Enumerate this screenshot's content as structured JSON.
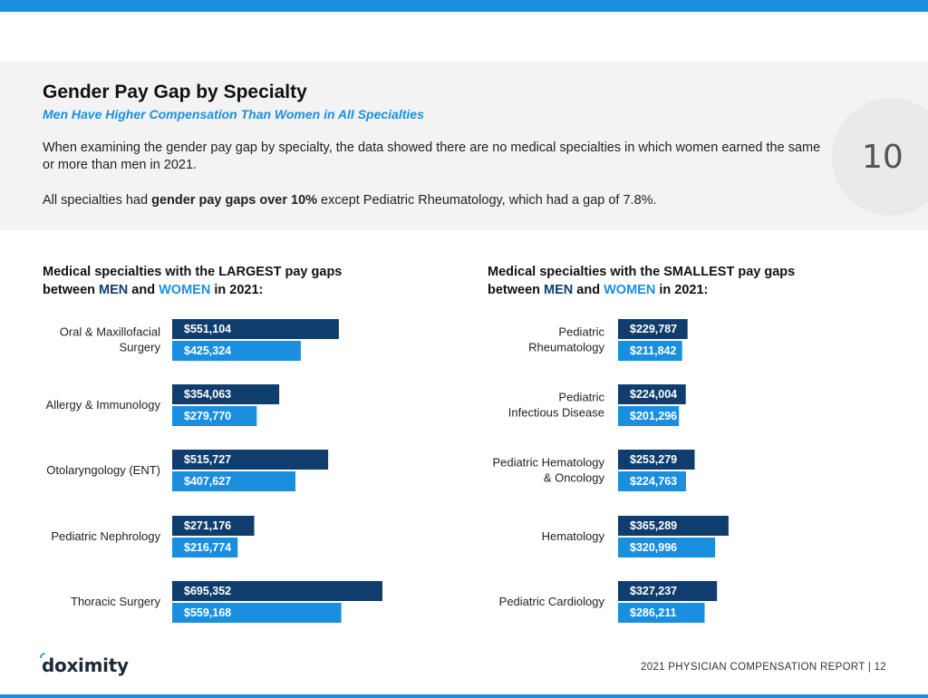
{
  "header": {
    "title": "Gender Pay Gap by Specialty",
    "subtitle": "Men Have Higher Compensation Than Women in All Specialties",
    "para1": "When examining the gender pay gap by specialty, the data showed there are no medical specialties in which women earned the same or more than men in 2021.",
    "para2_pre": "All specialties had ",
    "para2_bold": "gender pay gaps over 10%",
    "para2_post": " except Pediatric Rheumatology, which had a gap of 7.8%.",
    "page_badge": "10"
  },
  "left_panel": {
    "title_line1": "Medical specialties with the LARGEST pay gaps",
    "title_between": "between ",
    "title_men": "MEN",
    "title_and": " and ",
    "title_women": "WOMEN",
    "title_end": " in 2021:"
  },
  "right_panel": {
    "title_line1": "Medical specialties with the SMALLEST pay gaps",
    "title_between": "between ",
    "title_men": "MEN",
    "title_and": " and ",
    "title_women": "WOMEN",
    "title_end": " in 2021:"
  },
  "colors": {
    "men": "#0f3d6e",
    "women": "#1a8fe0",
    "accent": "#1a8fe0"
  },
  "chart_data": [
    {
      "type": "bar",
      "orientation": "horizontal",
      "categories": [
        [
          "Oral & Maxillofacial",
          "Surgery"
        ],
        [
          "Allergy & Immunology"
        ],
        [
          "Otolaryngology (ENT)"
        ],
        [
          "Pediatric Nephrology"
        ],
        [
          "Thoracic Surgery"
        ]
      ],
      "series": [
        {
          "name": "MEN",
          "values": [
            551104,
            354063,
            515727,
            271176,
            695352
          ],
          "labels": [
            "$551,104",
            "$354,063",
            "$515,727",
            "$271,176",
            "$695,352"
          ]
        },
        {
          "name": "WOMEN",
          "values": [
            425324,
            279770,
            407627,
            216774,
            559168
          ],
          "labels": [
            "$425,324",
            "$279,770",
            "$407,627",
            "$216,774",
            "$559,168"
          ]
        }
      ]
    },
    {
      "type": "bar",
      "orientation": "horizontal",
      "categories": [
        [
          "Pediatric",
          "Rheumatology"
        ],
        [
          "Pediatric",
          "Infectious Disease"
        ],
        [
          "Pediatric Hematology",
          "& Oncology"
        ],
        [
          "Hematology"
        ],
        [
          "Pediatric Cardiology"
        ]
      ],
      "series": [
        {
          "name": "MEN",
          "values": [
            229787,
            224004,
            253279,
            365289,
            327237
          ],
          "labels": [
            "$229,787",
            "$224,004",
            "$253,279",
            "$365,289",
            "$327,237"
          ]
        },
        {
          "name": "WOMEN",
          "values": [
            211842,
            201296,
            224763,
            320996,
            286211
          ],
          "labels": [
            "$211,842",
            "$201,296",
            "$224,763",
            "$320,996",
            "$286,211"
          ]
        }
      ]
    }
  ],
  "footer": {
    "logo": "doximity",
    "report": "2021 PHYSICIAN COMPENSATION REPORT | 12"
  }
}
